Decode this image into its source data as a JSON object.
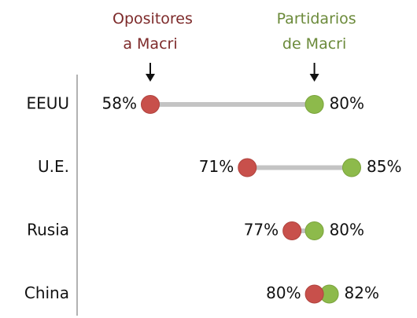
{
  "chart_data": {
    "type": "dumbbell",
    "categories": [
      "EEUU",
      "U.E.",
      "Rusia",
      "China"
    ],
    "series": [
      {
        "name": "Opositores a Macri",
        "color": "#c8504b",
        "text_color": "#7d2a2a",
        "values": [
          58,
          71,
          77,
          80
        ],
        "value_labels": [
          "58%",
          "71%",
          "77%",
          "80%"
        ]
      },
      {
        "name": "Partidarios de Macri",
        "color": "#8dba4b",
        "text_color": "#6b8a3a",
        "values": [
          80,
          85,
          80,
          82
        ],
        "value_labels": [
          "80%",
          "85%",
          "80%",
          "82%"
        ]
      }
    ],
    "connector_color": "#c4c4c4"
  }
}
